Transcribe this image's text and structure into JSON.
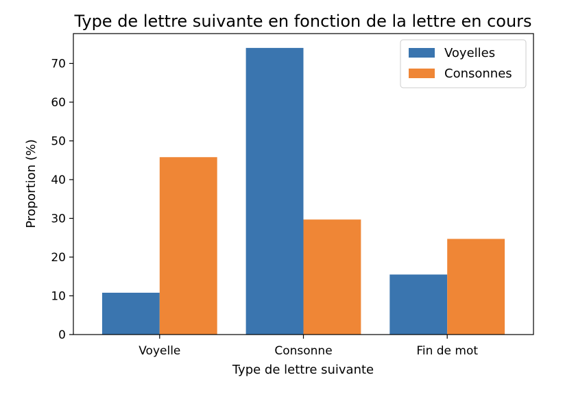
{
  "chart_data": {
    "type": "bar",
    "title": "Type de lettre suivante en fonction de la lettre en cours",
    "xlabel": "Type de lettre suivante",
    "ylabel": "Proportion (%)",
    "categories": [
      "Voyelle",
      "Consonne",
      "Fin de mot"
    ],
    "series": [
      {
        "name": "Voyelles",
        "values": [
          10.8,
          74.0,
          15.5
        ],
        "color": "#3a75af"
      },
      {
        "name": "Consonnes",
        "values": [
          45.8,
          29.7,
          24.7
        ],
        "color": "#ef8636"
      }
    ],
    "ylim": [
      0,
      77.7
    ],
    "yticks": [
      0,
      10,
      20,
      30,
      40,
      50,
      60,
      70
    ],
    "grid": false,
    "legend_position": "top-right"
  }
}
